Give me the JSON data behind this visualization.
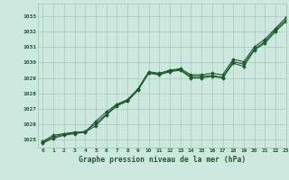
{
  "title": "Graphe pression niveau de la mer (hPa)",
  "bg_color": "#cde8df",
  "grid_color": "#a8c8bc",
  "line_color": "#1a5c2a",
  "xlim": [
    -0.5,
    23
  ],
  "ylim": [
    1024.5,
    1033.8
  ],
  "yticks": [
    1025,
    1026,
    1027,
    1028,
    1029,
    1030,
    1031,
    1032,
    1033
  ],
  "xticks": [
    0,
    1,
    2,
    3,
    4,
    5,
    6,
    7,
    8,
    9,
    10,
    11,
    12,
    13,
    14,
    15,
    16,
    17,
    18,
    19,
    20,
    21,
    22,
    23
  ],
  "series1": [
    1024.9,
    1025.3,
    1025.4,
    1025.5,
    1025.5,
    1026.2,
    1026.8,
    1027.3,
    1027.6,
    1028.3,
    1029.4,
    1029.3,
    1029.5,
    1029.6,
    1029.2,
    1029.2,
    1029.3,
    1029.2,
    1030.2,
    1030.05,
    1031.0,
    1031.5,
    1032.2,
    1032.9
  ],
  "series2": [
    1024.85,
    1025.2,
    1025.35,
    1025.45,
    1025.55,
    1026.05,
    1026.65,
    1027.25,
    1027.55,
    1028.25,
    1029.35,
    1029.25,
    1029.45,
    1029.55,
    1029.1,
    1029.1,
    1029.15,
    1029.05,
    1030.05,
    1029.9,
    1030.85,
    1031.35,
    1032.1,
    1032.75
  ],
  "series3": [
    1024.8,
    1025.1,
    1025.3,
    1025.4,
    1025.5,
    1025.9,
    1026.6,
    1027.2,
    1027.5,
    1028.2,
    1029.3,
    1029.2,
    1029.4,
    1029.5,
    1029.0,
    1029.0,
    1029.1,
    1029.0,
    1029.95,
    1029.75,
    1030.8,
    1031.25,
    1032.0,
    1032.65
  ]
}
